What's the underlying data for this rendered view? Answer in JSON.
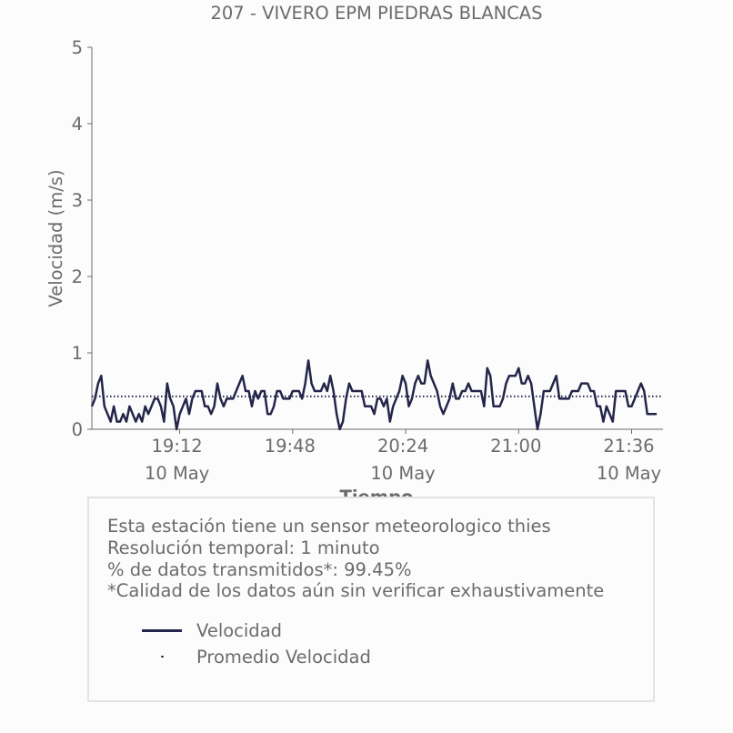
{
  "chart_data": {
    "type": "line",
    "title": "207 - VIVERO EPM PIEDRAS BLANCAS",
    "xlabel": "Tiempo",
    "ylabel": "Velocidad (m/s)",
    "ylim": [
      0,
      5
    ],
    "y_ticks": [
      "0",
      "1",
      "2",
      "3",
      "4",
      "5"
    ],
    "x_range": [
      "18:44",
      "21:46"
    ],
    "x_ticks": [
      {
        "time": "19:12",
        "label": "19:12",
        "date": "10 May"
      },
      {
        "time": "19:48",
        "label": "19:48",
        "date": ""
      },
      {
        "time": "20:24",
        "label": "20:24",
        "date": "10 May"
      },
      {
        "time": "21:00",
        "label": "21:00",
        "date": ""
      },
      {
        "time": "21:36",
        "label": "21:36",
        "date": "10 May"
      }
    ],
    "series": [
      {
        "name": "Velocidad",
        "color": "#24254a",
        "style": "solid",
        "start_time": "18:44",
        "step_minutes": 1,
        "values": [
          0.3,
          0.4,
          0.6,
          0.7,
          0.3,
          0.2,
          0.1,
          0.3,
          0.1,
          0.1,
          0.2,
          0.1,
          0.3,
          0.2,
          0.1,
          0.2,
          0.1,
          0.3,
          0.2,
          0.3,
          0.4,
          0.4,
          0.3,
          0.1,
          0.6,
          0.4,
          0.3,
          0.0,
          0.2,
          0.3,
          0.4,
          0.2,
          0.4,
          0.5,
          0.5,
          0.5,
          0.3,
          0.3,
          0.2,
          0.3,
          0.6,
          0.4,
          0.3,
          0.4,
          0.4,
          0.4,
          0.5,
          0.6,
          0.7,
          0.5,
          0.5,
          0.3,
          0.5,
          0.4,
          0.5,
          0.5,
          0.2,
          0.2,
          0.3,
          0.5,
          0.5,
          0.4,
          0.4,
          0.4,
          0.5,
          0.5,
          0.5,
          0.4,
          0.6,
          0.9,
          0.6,
          0.5,
          0.5,
          0.5,
          0.6,
          0.5,
          0.7,
          0.5,
          0.2,
          0.0,
          0.1,
          0.4,
          0.6,
          0.5,
          0.5,
          0.5,
          0.5,
          0.3,
          0.3,
          0.3,
          0.2,
          0.4,
          0.4,
          0.3,
          0.4,
          0.1,
          0.3,
          0.4,
          0.5,
          0.7,
          0.6,
          0.3,
          0.4,
          0.6,
          0.7,
          0.6,
          0.6,
          0.9,
          0.7,
          0.6,
          0.5,
          0.3,
          0.2,
          0.3,
          0.4,
          0.6,
          0.4,
          0.4,
          0.5,
          0.5,
          0.6,
          0.5,
          0.5,
          0.5,
          0.5,
          0.3,
          0.8,
          0.7,
          0.3,
          0.3,
          0.3,
          0.4,
          0.6,
          0.7,
          0.7,
          0.7,
          0.8,
          0.6,
          0.6,
          0.7,
          0.6,
          0.3,
          0.0,
          0.2,
          0.5,
          0.5,
          0.5,
          0.6,
          0.7,
          0.4,
          0.4,
          0.4,
          0.4,
          0.5,
          0.5,
          0.5,
          0.6,
          0.6,
          0.6,
          0.5,
          0.5,
          0.3,
          0.3,
          0.1,
          0.3,
          0.2,
          0.1,
          0.5,
          0.5,
          0.5,
          0.5,
          0.3,
          0.3,
          0.4,
          0.5,
          0.6,
          0.5,
          0.2,
          0.2,
          0.2,
          0.2
        ]
      },
      {
        "name": "Promedio Velocidad",
        "color": "#24254a",
        "style": "dotted",
        "value": 0.43
      }
    ],
    "grid": false,
    "legend_placement": "bottom-left inside info box"
  },
  "info": {
    "line1": "Esta estación tiene un sensor meteorologico thies",
    "line2": "Resolución temporal: 1 minuto",
    "line3": "% de datos transmitidos*: 99.45%",
    "line4": "*Calidad de los datos aún sin verificar exhaustivamente"
  },
  "legend": {
    "item1": "Velocidad",
    "item2": "Promedio Velocidad"
  }
}
